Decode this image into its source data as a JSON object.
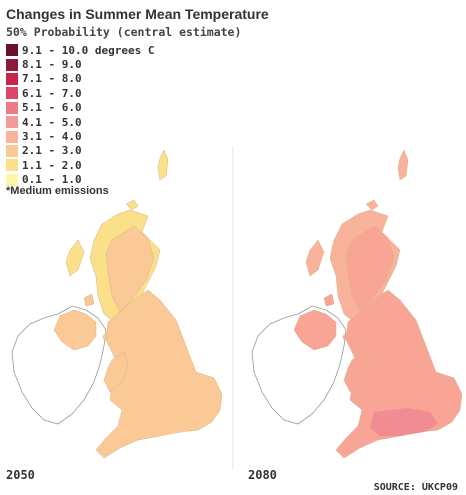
{
  "title": "Changes in Summer Mean Temperature",
  "subtitle": "50% Probability (central estimate)",
  "legend": [
    {
      "label": "9.1 - 10.0 degrees C",
      "color": "#6b0f2e"
    },
    {
      "label": "8.1 - 9.0",
      "color": "#8e1a3c"
    },
    {
      "label": "7.1 - 8.0",
      "color": "#c8254c"
    },
    {
      "label": "6.1 - 7.0",
      "color": "#d9486a"
    },
    {
      "label": "5.1 - 6.0",
      "color": "#ef7a86"
    },
    {
      "label": "4.1 - 5.0",
      "color": "#f59a9a"
    },
    {
      "label": "3.1 - 4.0",
      "color": "#f8b39a"
    },
    {
      "label": "2.1 - 3.0",
      "color": "#fbc996"
    },
    {
      "label": "1.1 - 2.0",
      "color": "#fbe08a"
    },
    {
      "label": "0.1 - 1.0",
      "color": "#fdf6a8"
    }
  ],
  "note": "*Medium emissions",
  "maps": [
    {
      "year": "2050",
      "main_class": "2.1 - 3.0",
      "main_color": "#fbc996",
      "north_color": "#fbe08a",
      "south_color": "#fbc996"
    },
    {
      "year": "2080",
      "main_class": "4.1 - 5.0",
      "main_color": "#f8a596",
      "north_color": "#f8b39a",
      "south_color": "#f28c93"
    }
  ],
  "source": "SOURCE: UKCP09"
}
